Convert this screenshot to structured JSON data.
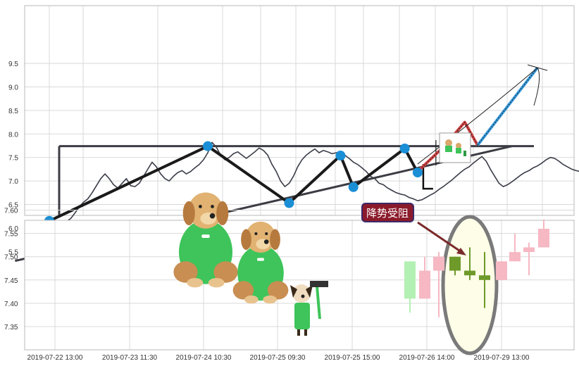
{
  "chart_data": [
    {
      "type": "line",
      "panel": "top",
      "y_ticks": [
        "5.5",
        "6.0",
        "6.5",
        "7.0",
        "7.5",
        "8.0",
        "8.5",
        "9.0",
        "9.5"
      ],
      "ylim": [
        5.4,
        9.8
      ],
      "grid": true,
      "series": [
        {
          "x": [
            0,
            1,
            2,
            3,
            4,
            5,
            6,
            7,
            8,
            9,
            10,
            11,
            12,
            13,
            14,
            15,
            16,
            17,
            18,
            19,
            20,
            21,
            22,
            23,
            24,
            25,
            26,
            27,
            28,
            29,
            30,
            31,
            32,
            33,
            34,
            35,
            36,
            37,
            38,
            39,
            40,
            41,
            42,
            43,
            44,
            45,
            46,
            47,
            48,
            49,
            50,
            51,
            52,
            53,
            54,
            55,
            56,
            57,
            58,
            59,
            60,
            61,
            62,
            63,
            64,
            65,
            66,
            67,
            68,
            69,
            70,
            71,
            72,
            73,
            74,
            75,
            76,
            77,
            78,
            79,
            80,
            81,
            82,
            83,
            84,
            85,
            86,
            87,
            88,
            89,
            90,
            91,
            92,
            93,
            94,
            95,
            96,
            97,
            98,
            99,
            100,
            101,
            102,
            103,
            104,
            105,
            106,
            107,
            108,
            109,
            110,
            111,
            112,
            113,
            114,
            115,
            116,
            117,
            118,
            119,
            120,
            121,
            122,
            123,
            124,
            125,
            126,
            127,
            128,
            129,
            130,
            131,
            132,
            133,
            134,
            135,
            136,
            137,
            138,
            139,
            140,
            141,
            142,
            143,
            144,
            145,
            146,
            147,
            148,
            149,
            150
          ],
          "values": [
            6.12,
            6.11,
            6.1,
            6.12,
            6.14,
            6.2,
            6.32,
            6.45,
            6.55,
            6.62,
            6.75,
            6.9,
            7.05,
            7.15,
            7.05,
            6.92,
            6.85,
            6.95,
            7.05,
            6.9,
            6.88,
            6.95,
            7.1,
            7.25,
            7.4,
            7.3,
            7.15,
            7.05,
            7.0,
            7.1,
            7.18,
            7.22,
            7.15,
            7.2,
            7.28,
            7.35,
            7.45,
            7.6,
            7.82,
            7.72,
            7.55,
            7.45,
            7.5,
            7.58,
            7.62,
            7.55,
            7.48,
            7.55,
            7.62,
            7.7,
            7.65,
            7.55,
            7.35,
            7.2,
            7.0,
            6.88,
            6.95,
            7.1,
            7.3,
            7.45,
            7.55,
            7.62,
            7.68,
            7.6,
            7.65,
            7.62,
            7.58,
            7.6,
            7.62,
            7.55,
            7.48,
            7.4,
            7.35,
            7.28,
            7.2,
            7.1,
            7.05,
            6.95,
            6.92,
            6.85,
            6.8,
            6.75,
            6.72,
            6.7,
            6.65,
            6.62,
            6.58,
            6.6,
            6.65,
            6.7,
            6.75,
            6.82,
            6.88,
            6.95,
            7.02,
            7.1,
            7.18,
            7.25,
            7.3,
            7.38,
            7.45,
            7.52,
            7.42,
            7.25,
            7.1,
            6.95,
            6.88,
            6.92,
            6.98,
            7.05,
            7.12,
            7.18,
            7.22,
            7.28,
            7.32,
            7.38,
            7.45,
            7.5,
            7.48,
            7.42,
            7.35,
            7.3,
            7.25,
            7.22,
            7.2,
            7.18,
            7.22,
            7.3,
            7.45,
            7.58,
            7.66,
            7.62,
            7.5,
            7.4,
            7.32,
            7.25,
            7.2,
            7.15,
            7.12,
            7.18,
            7.25,
            7.38,
            7.55,
            7.62,
            7.52,
            7.35,
            7.2,
            7.15,
            7.25,
            7.45,
            7.6
          ]
        }
      ],
      "pattern_points": [
        {
          "x": 0,
          "y": 6.15
        },
        {
          "x": 37,
          "y": 7.74
        },
        {
          "x": 56,
          "y": 6.53
        },
        {
          "x": 68,
          "y": 7.54
        },
        {
          "x": 71,
          "y": 6.87
        },
        {
          "x": 83,
          "y": 7.69
        },
        {
          "x": 86,
          "y": 7.18
        }
      ],
      "resistance_level": 7.74,
      "support_line": [
        {
          "x": -8,
          "y": 5.3
        },
        {
          "x": 108,
          "y": 7.74
        }
      ],
      "projection": [
        {
          "x": 86,
          "y": 7.2
        },
        {
          "x": 92,
          "y": 7.72
        },
        {
          "x": 97,
          "y": 8.25
        },
        {
          "x": 100,
          "y": 7.76
        },
        {
          "x": 114,
          "y": 9.41
        }
      ]
    },
    {
      "type": "candlestick",
      "panel": "bottom",
      "y_ticks": [
        "7.35",
        "7.40",
        "7.45",
        "7.50",
        "7.55",
        "7.60"
      ],
      "ylim": [
        7.335,
        7.613
      ],
      "x_ticks": [
        "2019-07-22 13:00",
        "2019-07-23 11:30",
        "2019-07-24 10:30",
        "2019-07-25 09:30",
        "2019-07-25 15:00",
        "2019-07-26 14:00",
        "2019-07-29 13:00"
      ],
      "grid": true,
      "candles": [
        {
          "open": 7.41,
          "close": 7.49,
          "high": 7.49,
          "low": 7.38,
          "color": "#b3f0b3"
        },
        {
          "open": 7.47,
          "close": 7.41,
          "high": 7.5,
          "low": 7.41,
          "color": "#f6b8c3"
        },
        {
          "open": 7.5,
          "close": 7.47,
          "high": 7.51,
          "low": 7.37,
          "color": "#f6b8c3"
        },
        {
          "open": 7.47,
          "close": 7.5,
          "high": 7.5,
          "low": 7.46,
          "color": "#6e9a2a"
        },
        {
          "open": 7.47,
          "close": 7.46,
          "high": 7.52,
          "low": 7.45,
          "color": "#6e9a2a"
        },
        {
          "open": 7.46,
          "close": 7.45,
          "high": 7.51,
          "low": 7.39,
          "color": "#6e9a2a"
        },
        {
          "open": 7.45,
          "close": 7.49,
          "high": 7.49,
          "low": 7.45,
          "color": "#f6b8c3"
        },
        {
          "open": 7.49,
          "close": 7.51,
          "high": 7.55,
          "low": 7.49,
          "color": "#f6b8c3"
        },
        {
          "open": 7.51,
          "close": 7.52,
          "high": 7.53,
          "low": 7.46,
          "color": "#f6b8c3"
        },
        {
          "open": 7.52,
          "close": 7.56,
          "high": 7.58,
          "low": 7.52,
          "color": "#f6b8c3"
        }
      ],
      "annotation": "降势受阻"
    }
  ],
  "colors": {
    "price": "#3a3d48",
    "pattern": "#1a1a1a",
    "marker": "#1a8fd6",
    "annotation_box": "#8b1a2b",
    "annotation_border": "#3a2a6a",
    "highlight_fill": "#fdfde8",
    "highlight_stroke": "#7a7a7a",
    "arrow": "#7a2a2a",
    "projection_red": "#d04040",
    "projection_blue": "#3399dd"
  }
}
